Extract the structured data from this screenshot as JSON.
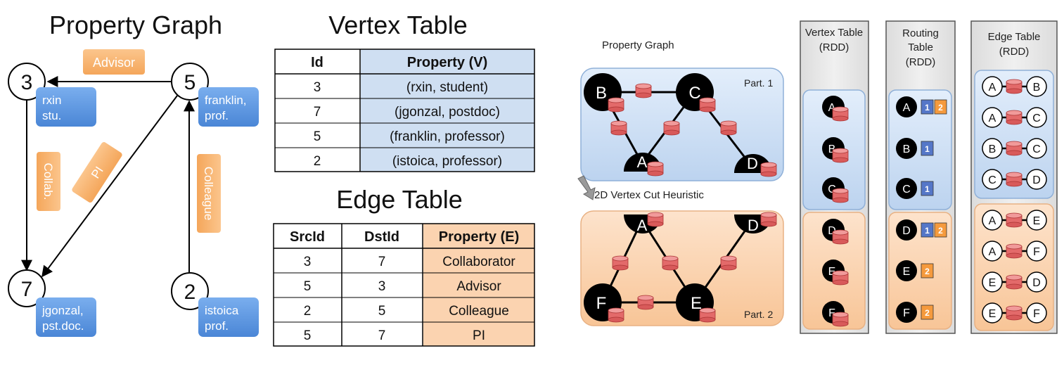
{
  "colors": {
    "blue_fill": "#cfdff2",
    "blue_box": "#5b96de",
    "orange_fill": "#fbd3b0",
    "orange_box": "#f6a65a",
    "edge_cyl": "#e06464",
    "gray_panel": "#e6e6e6",
    "routing_blue": "#5577c8",
    "routing_orange": "#f59a3d"
  },
  "left": {
    "title": "Property Graph",
    "nodes": [
      {
        "id": "3",
        "label_lines": [
          "rxin",
          "stu."
        ]
      },
      {
        "id": "5",
        "label_lines": [
          "franklin,",
          "prof."
        ]
      },
      {
        "id": "7",
        "label_lines": [
          "jgonzal,",
          "pst.doc."
        ]
      },
      {
        "id": "2",
        "label_lines": [
          "istoica",
          "prof."
        ]
      }
    ],
    "edge_labels": {
      "advisor": "Advisor",
      "collab": "Collab.",
      "pi": "PI",
      "colleague": "Colleague"
    }
  },
  "vertex_table": {
    "title": "Vertex Table",
    "headers": [
      "Id",
      "Property (V)"
    ],
    "rows": [
      [
        "3",
        "(rxin, student)"
      ],
      [
        "7",
        "(jgonzal, postdoc)"
      ],
      [
        "5",
        "(franklin, professor)"
      ],
      [
        "2",
        "(istoica, professor)"
      ]
    ]
  },
  "edge_table": {
    "title": "Edge Table",
    "headers": [
      "SrcId",
      "DstId",
      "Property (E)"
    ],
    "rows": [
      [
        "3",
        "7",
        "Collaborator"
      ],
      [
        "5",
        "3",
        "Advisor"
      ],
      [
        "2",
        "5",
        "Colleague"
      ],
      [
        "5",
        "7",
        "PI"
      ]
    ]
  },
  "right": {
    "property_graph_label": "Property Graph",
    "cut_label": "2D Vertex Cut Heuristic",
    "part1": {
      "label": "Part. 1",
      "vertices": [
        "B",
        "C",
        "A",
        "D"
      ]
    },
    "part2": {
      "label": "Part. 2",
      "vertices": [
        "A",
        "D",
        "F",
        "E"
      ]
    },
    "vertex_rdd": {
      "title_lines": [
        "Vertex Table",
        "(RDD)"
      ],
      "part1": [
        "A",
        "B",
        "C"
      ],
      "part2": [
        "D",
        "E",
        "F"
      ]
    },
    "routing_rdd": {
      "title_lines": [
        "Routing",
        "Table",
        "(RDD)"
      ],
      "rows": [
        {
          "v": "A",
          "parts": [
            "1",
            "2"
          ]
        },
        {
          "v": "B",
          "parts": [
            "1"
          ]
        },
        {
          "v": "C",
          "parts": [
            "1"
          ]
        },
        {
          "v": "D",
          "parts": [
            "1",
            "2"
          ]
        },
        {
          "v": "E",
          "parts": [
            "2"
          ]
        },
        {
          "v": "F",
          "parts": [
            "2"
          ]
        }
      ]
    },
    "edge_rdd": {
      "title_lines": [
        "Edge Table",
        "(RDD)"
      ],
      "part1": [
        [
          "A",
          "B"
        ],
        [
          "A",
          "C"
        ],
        [
          "B",
          "C"
        ],
        [
          "C",
          "D"
        ]
      ],
      "part2": [
        [
          "A",
          "E"
        ],
        [
          "A",
          "F"
        ],
        [
          "E",
          "D"
        ],
        [
          "E",
          "F"
        ]
      ]
    }
  }
}
